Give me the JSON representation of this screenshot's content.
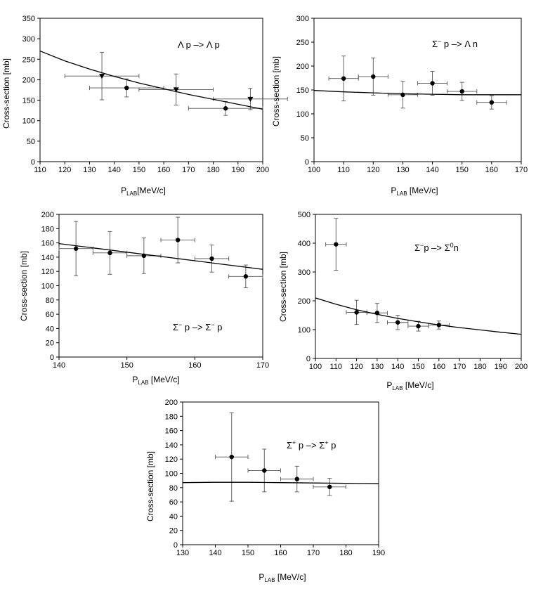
{
  "figure": {
    "ylabel_a": "Cross-section [mb]",
    "ylabel_b": "Cross-section  [mb]",
    "xlabel_main": "P",
    "xlabel_sub": "LAB",
    "xlabel_unit": "[MeV/c]",
    "xlabel_unit_spaced": " [MeV/c]",
    "xlabel_unit_tight": "[MeV/c]"
  },
  "chart_data": [
    {
      "type": "scatter",
      "title": "",
      "reaction": {
        "a": "Λ",
        "b": " p ",
        "c": "–>",
        "d": " Λ",
        "e": " p"
      },
      "xlabel": "P_LAB[MeV/c]",
      "ylabel": "Cross-section [mb]",
      "xlim": [
        110,
        200
      ],
      "ylim": [
        0,
        350
      ],
      "xticks": [
        110,
        120,
        130,
        140,
        150,
        160,
        170,
        180,
        190,
        200
      ],
      "yticks": [
        0,
        50,
        100,
        150,
        200,
        250,
        300,
        350
      ],
      "series": [
        {
          "name": "data (circles)",
          "marker": "circle",
          "points": [
            {
              "x": 145,
              "y": 180,
              "xerr": 15,
              "yerr": 22
            },
            {
              "x": 185,
              "y": 130,
              "xerr": 15,
              "yerr": 17
            }
          ]
        },
        {
          "name": "data (triangles)",
          "marker": "triangle",
          "points": [
            {
              "x": 135,
              "y": 209,
              "xerr": 15,
              "yerr": 58
            },
            {
              "x": 165,
              "y": 176,
              "xerr": 15,
              "yerr": 38
            },
            {
              "x": 195,
              "y": 153,
              "xerr": 15,
              "yerr": 26
            }
          ]
        },
        {
          "name": "model",
          "type": "line",
          "x": [
            110,
            120,
            130,
            140,
            150,
            160,
            170,
            180,
            190,
            200
          ],
          "y": [
            270,
            246,
            226,
            208,
            192,
            178,
            164,
            152,
            140,
            128
          ]
        }
      ]
    },
    {
      "type": "scatter",
      "title": "",
      "reaction": {
        "a": "Σ",
        "a_sup": "−",
        "b": " p ",
        "c": "–>",
        "d": " Λ",
        "e": " n"
      },
      "xlabel": "P_LAB [MeV/c]",
      "ylabel": "Cross-section [mb]",
      "xlim": [
        100,
        170
      ],
      "ylim": [
        0,
        300
      ],
      "xticks": [
        100,
        110,
        120,
        130,
        140,
        150,
        160,
        170
      ],
      "yticks": [
        0,
        50,
        100,
        150,
        200,
        250,
        300
      ],
      "series": [
        {
          "name": "data",
          "marker": "circle",
          "points": [
            {
              "x": 110,
              "y": 174,
              "xerr": 5,
              "yerr": 47
            },
            {
              "x": 120,
              "y": 178,
              "xerr": 5,
              "yerr": 39
            },
            {
              "x": 130,
              "y": 140,
              "xerr": 5,
              "yerr": 28
            },
            {
              "x": 140,
              "y": 164,
              "xerr": 5,
              "yerr": 25
            },
            {
              "x": 150,
              "y": 147,
              "xerr": 5,
              "yerr": 19
            },
            {
              "x": 160,
              "y": 124,
              "xerr": 5,
              "yerr": 14
            }
          ]
        },
        {
          "name": "model",
          "type": "line",
          "x": [
            100,
            110,
            120,
            130,
            140,
            150,
            160,
            170
          ],
          "y": [
            149,
            146,
            144,
            142,
            141,
            140,
            140,
            140
          ]
        }
      ]
    },
    {
      "type": "scatter",
      "title": "",
      "reaction": {
        "a": "Σ",
        "a_sup": "−",
        "b": " p ",
        "c": "–>",
        "d": " Σ",
        "d_sup": "−",
        "e": " p"
      },
      "xlabel": "P_LAB [MeV/c]",
      "ylabel": "Cross-section [mb]",
      "xlim": [
        140,
        170
      ],
      "ylim": [
        0,
        200
      ],
      "xticks": [
        140,
        150,
        160,
        170
      ],
      "yticks": [
        0,
        20,
        40,
        60,
        80,
        100,
        120,
        140,
        160,
        180,
        200
      ],
      "series": [
        {
          "name": "data",
          "marker": "circle",
          "points": [
            {
              "x": 142.5,
              "y": 152,
              "xerr": 2.5,
              "yerr": 38
            },
            {
              "x": 147.5,
              "y": 146,
              "xerr": 2.5,
              "yerr": 30
            },
            {
              "x": 152.5,
              "y": 142,
              "xerr": 2.5,
              "yerr": 25
            },
            {
              "x": 157.5,
              "y": 164,
              "xerr": 2.5,
              "yerr": 32
            },
            {
              "x": 162.5,
              "y": 138,
              "xerr": 2.5,
              "yerr": 19
            },
            {
              "x": 167.5,
              "y": 113,
              "xerr": 2.5,
              "yerr": 16
            }
          ]
        },
        {
          "name": "model",
          "type": "line",
          "x": [
            140,
            145,
            150,
            155,
            160,
            165,
            170
          ],
          "y": [
            159,
            153,
            147,
            141,
            135,
            129,
            123
          ]
        }
      ]
    },
    {
      "type": "scatter",
      "title": "",
      "reaction": {
        "a": "Σ",
        "a_sup": "−",
        "b": "p ",
        "c": "–>",
        "d": " Σ",
        "d_sup": "0",
        "e": "n"
      },
      "xlabel": "P_LAB [MeV/c]",
      "ylabel": "Cross-section  [mb]",
      "xlim": [
        100,
        200
      ],
      "ylim": [
        0,
        500
      ],
      "xticks": [
        100,
        110,
        120,
        130,
        140,
        150,
        160,
        170,
        180,
        190,
        200
      ],
      "yticks": [
        0,
        100,
        200,
        300,
        400,
        500
      ],
      "series": [
        {
          "name": "data",
          "marker": "circle",
          "points": [
            {
              "x": 110,
              "y": 396,
              "xerr": 5,
              "yerr": 90
            },
            {
              "x": 120,
              "y": 160,
              "xerr": 5,
              "yerr": 42
            },
            {
              "x": 130,
              "y": 158,
              "xerr": 5,
              "yerr": 33
            },
            {
              "x": 140,
              "y": 125,
              "xerr": 5,
              "yerr": 25
            },
            {
              "x": 150,
              "y": 112,
              "xerr": 5,
              "yerr": 17
            },
            {
              "x": 160,
              "y": 116,
              "xerr": 5,
              "yerr": 14
            }
          ]
        },
        {
          "name": "model",
          "type": "line",
          "x": [
            100,
            110,
            120,
            130,
            140,
            150,
            160,
            170,
            180,
            190,
            200
          ],
          "y": [
            210,
            188,
            169,
            153,
            139,
            127,
            116,
            107,
            99,
            91,
            84
          ]
        }
      ]
    },
    {
      "type": "scatter",
      "title": "",
      "reaction": {
        "a": "Σ",
        "a_sup": "+",
        "b": " p ",
        "c": "–>",
        "d": " Σ",
        "d_sup": "+",
        "e": " p"
      },
      "xlabel": "P_LAB [MeV/c]",
      "ylabel": "Cross-section  [mb]",
      "xlim": [
        130,
        190
      ],
      "ylim": [
        0,
        200
      ],
      "xticks": [
        130,
        140,
        150,
        160,
        170,
        180,
        190
      ],
      "yticks": [
        0,
        20,
        40,
        60,
        80,
        100,
        120,
        140,
        160,
        180,
        200
      ],
      "series": [
        {
          "name": "data",
          "marker": "circle",
          "points": [
            {
              "x": 145,
              "y": 123,
              "xerr": 5,
              "yerr": 62
            },
            {
              "x": 155,
              "y": 104,
              "xerr": 5,
              "yerr": 30
            },
            {
              "x": 165,
              "y": 92,
              "xerr": 5,
              "yerr": 18
            },
            {
              "x": 175,
              "y": 81,
              "xerr": 5,
              "yerr": 12
            }
          ]
        },
        {
          "name": "model",
          "type": "line",
          "x": [
            130,
            140,
            150,
            160,
            170,
            180,
            190
          ],
          "y": [
            87,
            87.5,
            87.5,
            87,
            86.5,
            86,
            85.5
          ]
        }
      ]
    }
  ]
}
